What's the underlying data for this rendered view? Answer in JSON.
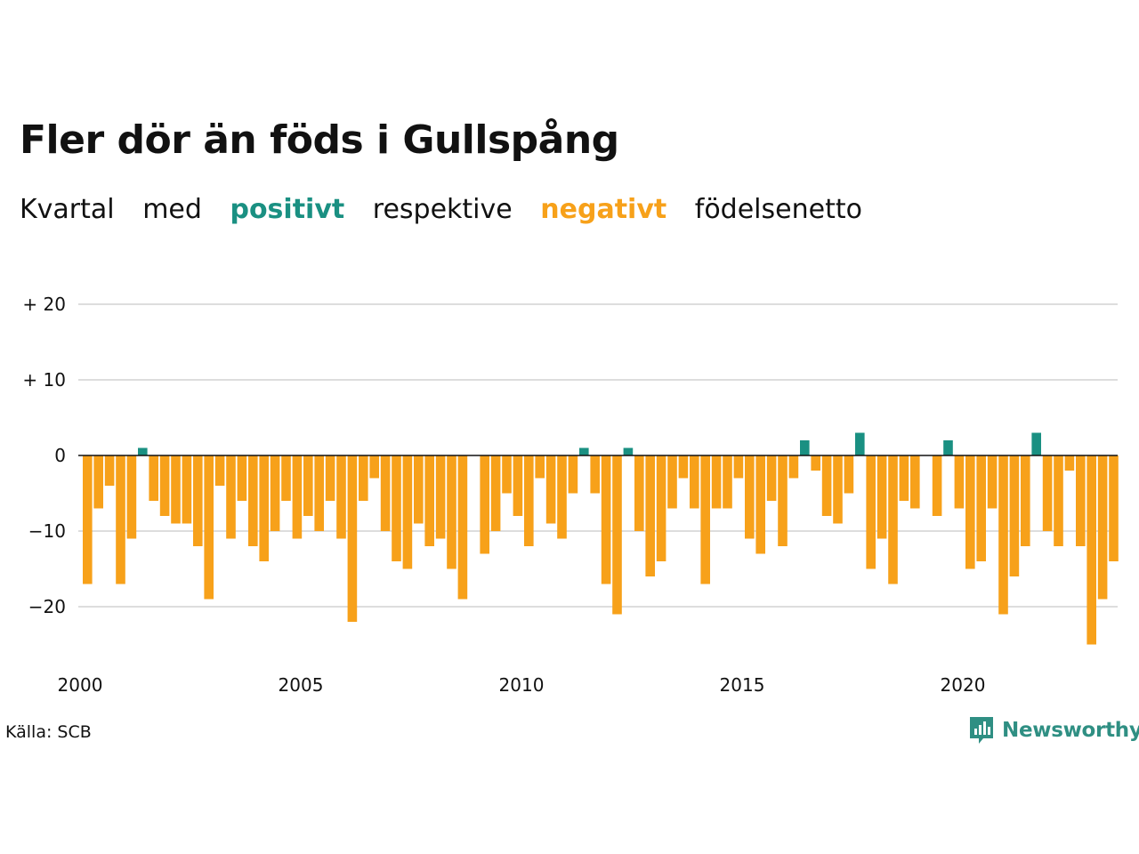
{
  "header": {
    "title": "Fler dör än föds i Gullspång",
    "subtitle": {
      "w1": "Kvartal",
      "w2": "med",
      "positive": "positivt",
      "w3": "respektive",
      "negative": "negativt",
      "w4": "födelsenetto"
    }
  },
  "colors": {
    "positive": "#1a9082",
    "negative": "#f7a11a",
    "grid": "#dddddd",
    "zero_line": "#111111",
    "brand": "#2f8f83"
  },
  "footer": {
    "source": "Källa: SCB",
    "brand": "Newsworthy",
    "brand_icon": "newsworthy-logo-icon"
  },
  "chart_data": {
    "type": "bar",
    "x_start": "2000 Q1",
    "frequency": "quarterly",
    "values": [
      -17,
      -7,
      -4,
      -17,
      -11,
      1,
      -6,
      -8,
      -9,
      -9,
      -12,
      -19,
      -4,
      -11,
      -6,
      -12,
      -14,
      -10,
      -6,
      -11,
      -8,
      -10,
      -6,
      -11,
      -22,
      -6,
      -3,
      -10,
      -14,
      -15,
      -9,
      -12,
      -11,
      -15,
      -19,
      0,
      -13,
      -10,
      -5,
      -8,
      -12,
      -3,
      -9,
      -11,
      -5,
      1,
      -5,
      -17,
      -21,
      1,
      -10,
      -16,
      -14,
      -7,
      -3,
      -7,
      -17,
      -7,
      -7,
      -3,
      -11,
      -13,
      -6,
      -12,
      -3,
      2,
      -2,
      -8,
      -9,
      -5,
      3,
      -15,
      -11,
      -17,
      -6,
      -7,
      0,
      -8,
      2,
      -7,
      -15,
      -14,
      -7,
      -21,
      -16,
      -12,
      3,
      -10,
      -12,
      -2,
      -12,
      -25,
      -19,
      -14
    ],
    "x_ticks": [
      "2000",
      "2005",
      "2010",
      "2015",
      "2020"
    ],
    "y_ticks": [
      {
        "value": 20,
        "label": "+ 20"
      },
      {
        "value": 10,
        "label": "+ 10"
      },
      {
        "value": 0,
        "label": "0"
      },
      {
        "value": -10,
        "label": "−10"
      },
      {
        "value": -20,
        "label": "−20"
      }
    ],
    "ylim": [
      -27,
      20
    ],
    "grid": true,
    "title": "Fler dör än föds i Gullspång",
    "xlabel": "",
    "ylabel": ""
  }
}
